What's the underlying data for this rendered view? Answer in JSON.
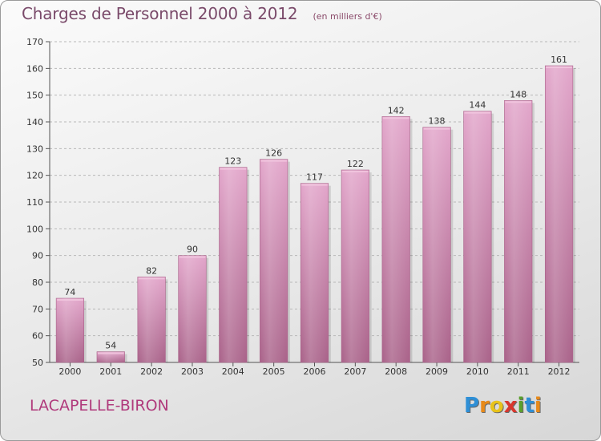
{
  "title": "Charges de Personnel 2000 à 2012",
  "subtitle": "(en milliers d'€)",
  "commune": "LACAPELLE-BIRON",
  "logo": {
    "text": "Proxiti",
    "letters": [
      "P",
      "r",
      "o",
      "x",
      "i",
      "t",
      "i"
    ],
    "colors": [
      "#2e8fd6",
      "#e88a1a",
      "#e8c31a",
      "#d8372d",
      "#5aa02c",
      "#2e8fd6",
      "#e88a1a"
    ]
  },
  "colors": {
    "bar": "#c77aa6",
    "bar_light": "#e2a5ca",
    "bar_dark": "#a96289"
  },
  "chart_data": {
    "type": "bar",
    "categories": [
      "2000",
      "2001",
      "2002",
      "2003",
      "2004",
      "2005",
      "2006",
      "2007",
      "2008",
      "2009",
      "2010",
      "2011",
      "2012"
    ],
    "values": [
      74,
      54,
      82,
      90,
      123,
      126,
      117,
      122,
      142,
      138,
      144,
      148,
      161
    ],
    "ylim": [
      50,
      170
    ],
    "yticks": [
      50,
      60,
      70,
      80,
      90,
      100,
      110,
      120,
      130,
      140,
      150,
      160,
      170
    ],
    "grid": true,
    "legend": "none"
  }
}
